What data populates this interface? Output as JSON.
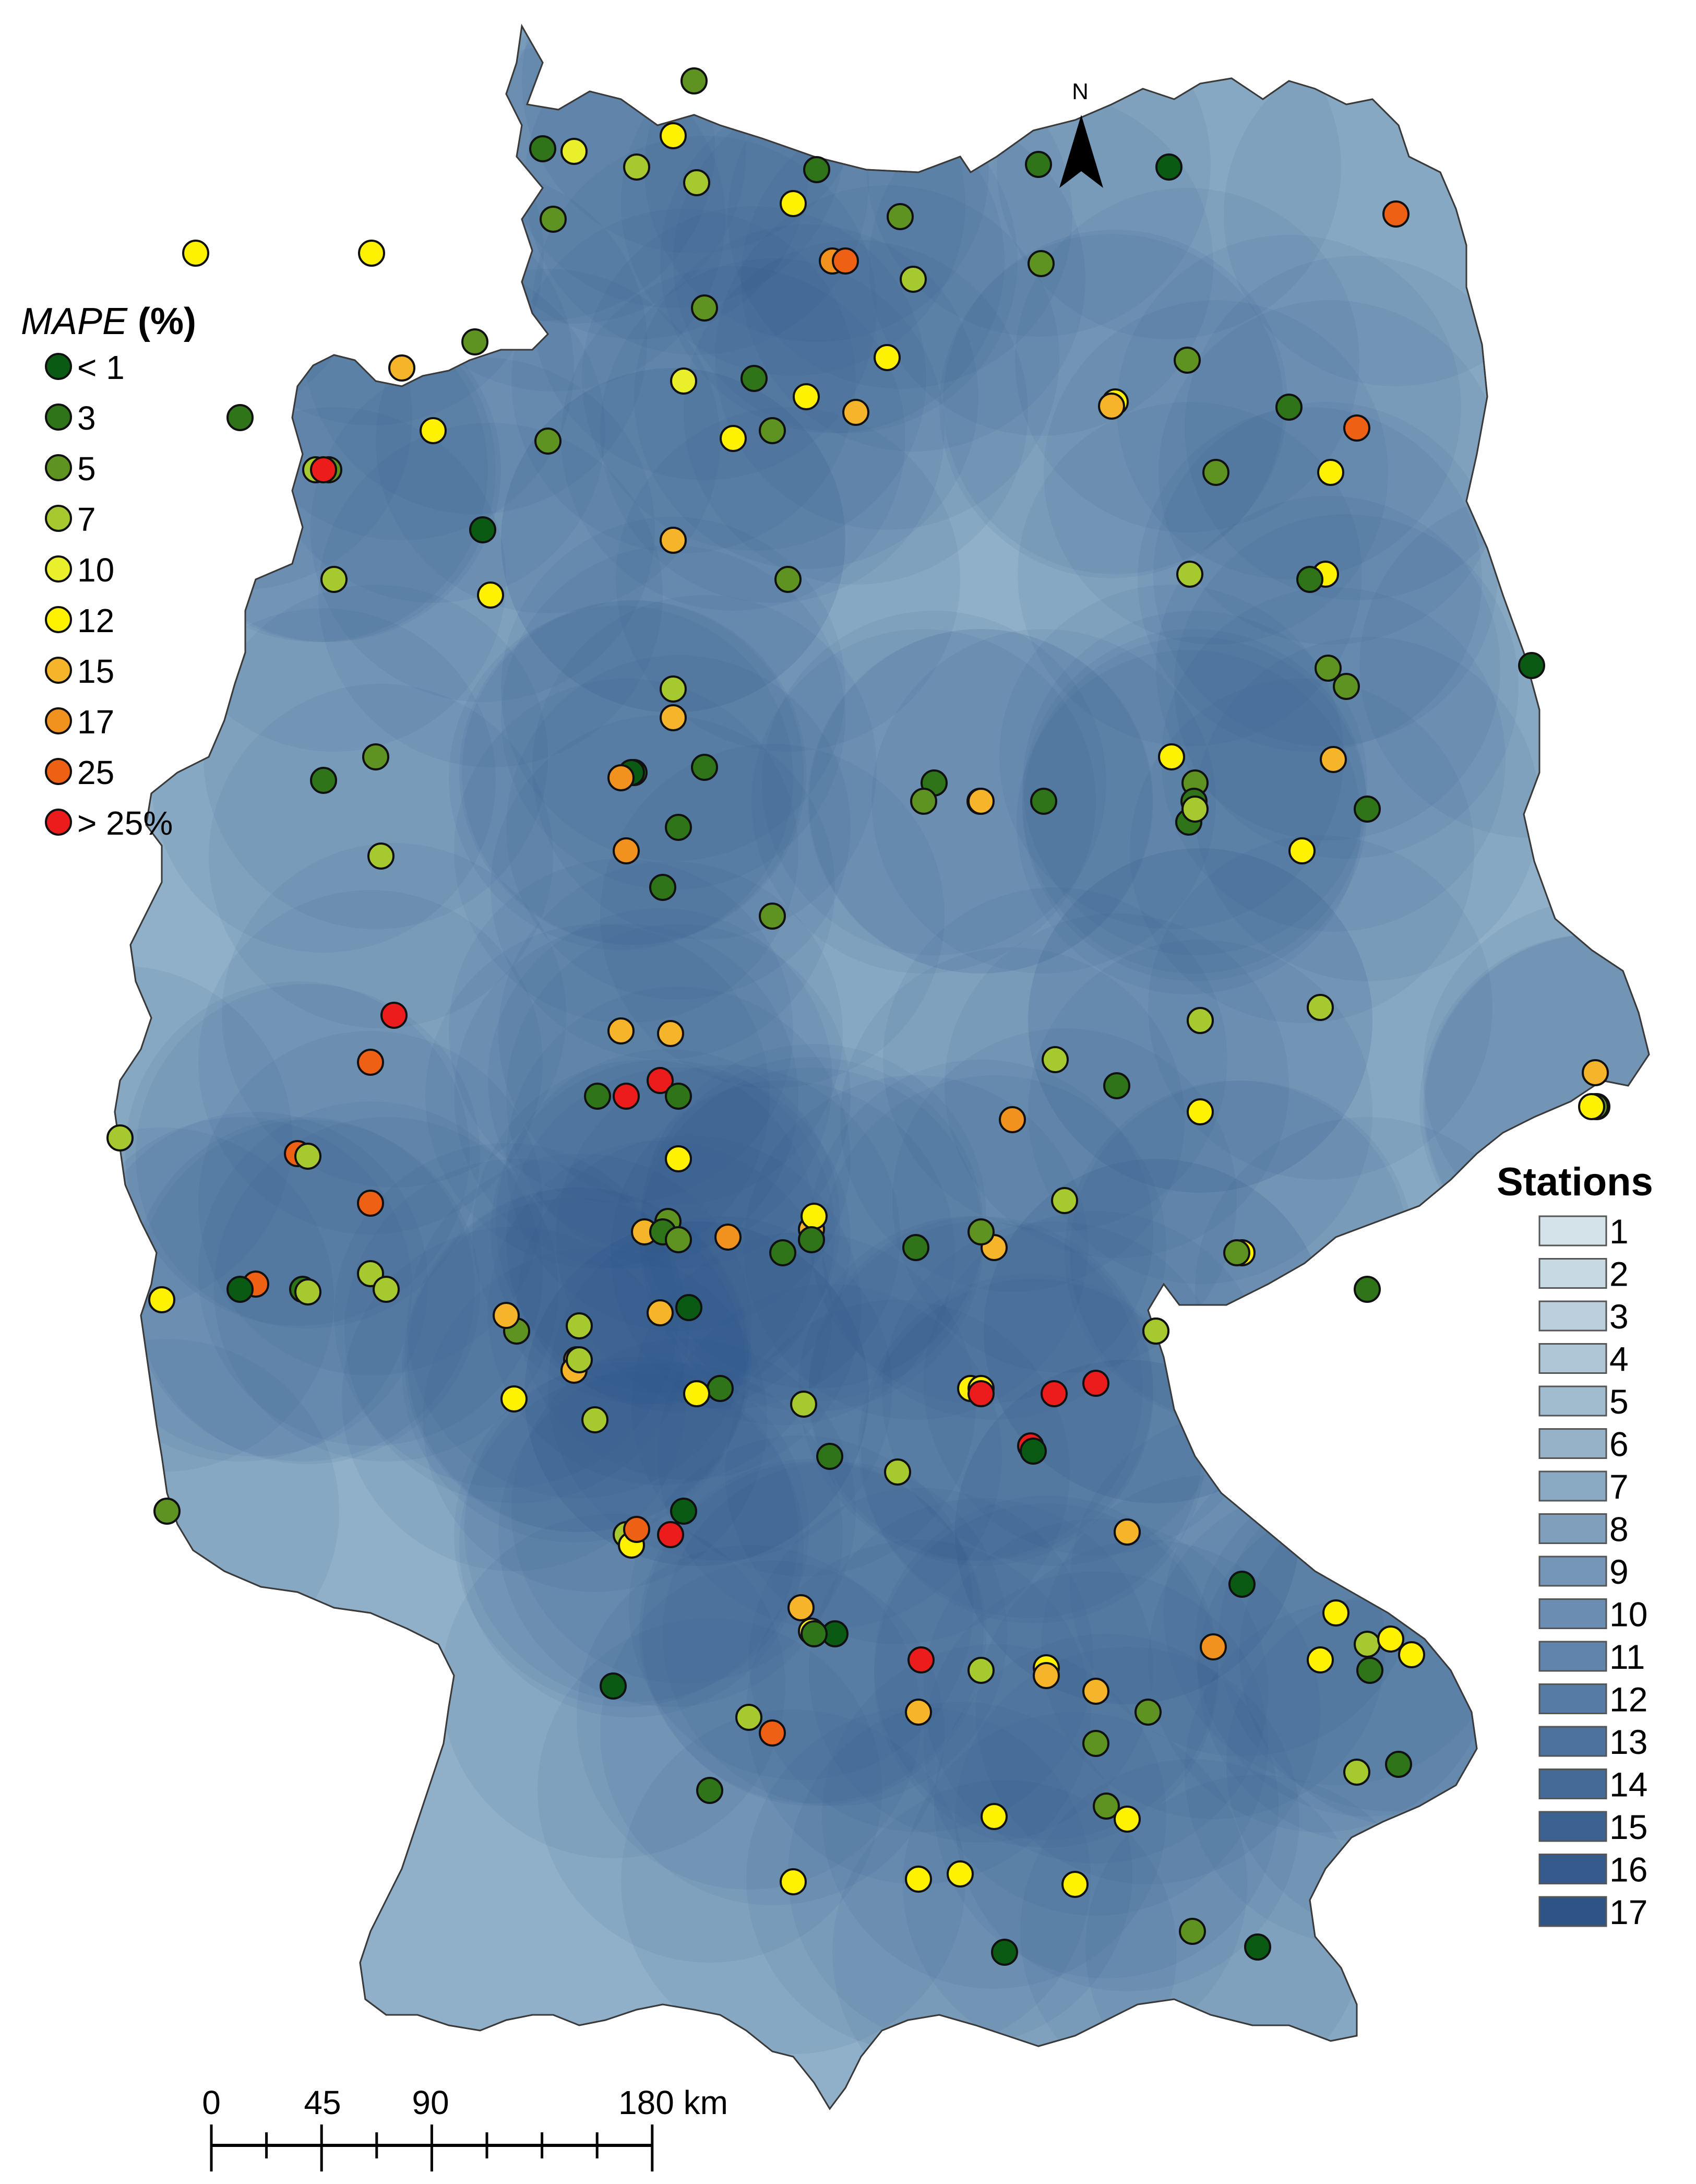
{
  "mape_legend": {
    "title_italic": "MAPE",
    "title_suffix": " (%)",
    "items": [
      {
        "label": "< 1",
        "color": "#0b5a14"
      },
      {
        "label": "3",
        "color": "#2f7419"
      },
      {
        "label": "5",
        "color": "#5e9221"
      },
      {
        "label": "7",
        "color": "#a6c930"
      },
      {
        "label": "10",
        "color": "#e9ef2b"
      },
      {
        "label": "12",
        "color": "#fff200"
      },
      {
        "label": "15",
        "color": "#f5b42a"
      },
      {
        "label": "17",
        "color": "#f2921e"
      },
      {
        "label": "25",
        "color": "#ee6014"
      },
      {
        "label": "> 25%",
        "color": "#ec1c1c"
      }
    ]
  },
  "stations_legend": {
    "title": "Stations",
    "items": [
      {
        "label": "1",
        "color": "#d4e3ea"
      },
      {
        "label": "2",
        "color": "#c7d9e3"
      },
      {
        "label": "3",
        "color": "#bbd0dc"
      },
      {
        "label": "4",
        "color": "#aec6d6"
      },
      {
        "label": "5",
        "color": "#a2bccf"
      },
      {
        "label": "6",
        "color": "#96b2c9"
      },
      {
        "label": "7",
        "color": "#8aa9c3"
      },
      {
        "label": "8",
        "color": "#7f9fbd"
      },
      {
        "label": "9",
        "color": "#7596b7"
      },
      {
        "label": "10",
        "color": "#6a8db1"
      },
      {
        "label": "11",
        "color": "#6084ab"
      },
      {
        "label": "12",
        "color": "#567ba4"
      },
      {
        "label": "13",
        "color": "#4d729e"
      },
      {
        "label": "14",
        "color": "#446a98"
      },
      {
        "label": "15",
        "color": "#3c6292"
      },
      {
        "label": "16",
        "color": "#355b8c"
      },
      {
        "label": "17",
        "color": "#2e5486"
      }
    ]
  },
  "north_arrow": {
    "label": "N"
  },
  "scale_bar": {
    "labels": [
      "0",
      "45",
      "90",
      "180 km"
    ]
  },
  "stations": [
    {
      "mape": 5
    },
    {
      "mape": 10
    },
    {
      "mape": 7
    },
    {
      "mape": 3
    },
    {
      "mape": 12
    },
    {
      "mape": 7
    },
    {
      "mape": 3
    },
    {
      "mape": 5
    },
    {
      "mape": 12
    },
    {
      "mape": 17
    },
    {
      "mape": 25
    },
    {
      "mape": 5
    },
    {
      "mape": 5
    },
    {
      "mape": 7
    },
    {
      "mape": 5
    },
    {
      "mape": 3
    },
    {
      "mape": 10
    },
    {
      "mape": 12
    },
    {
      "mape": 5
    },
    {
      "mape": 15
    },
    {
      "mape": 3
    },
    {
      "mape": 12
    },
    {
      "mape": 12
    },
    {
      "mape": 5
    },
    {
      "mape": 12
    },
    {
      "mape": 12
    },
    {
      "mape": 12
    },
    {
      "mape": 15
    },
    {
      "mape": 5
    },
    {
      "mape": 7
    },
    {
      "mape": 1
    },
    {
      "mape": 25
    },
    {
      "mape": 5
    },
    {
      "mape": 12
    },
    {
      "mape": 5
    },
    {
      "mape": 3
    },
    {
      "mape": 50
    },
    {
      "mape": 12
    },
    {
      "mape": 3
    },
    {
      "mape": 15
    },
    {
      "mape": 5
    },
    {
      "mape": 7
    },
    {
      "mape": 7
    },
    {
      "mape": 25
    },
    {
      "mape": 7
    },
    {
      "mape": 1
    },
    {
      "mape": 3
    },
    {
      "mape": 12
    },
    {
      "mape": 5
    },
    {
      "mape": 12
    },
    {
      "mape": 5
    },
    {
      "mape": 1
    },
    {
      "mape": 3
    },
    {
      "mape": 5
    },
    {
      "mape": 7
    },
    {
      "mape": 15
    },
    {
      "mape": 5
    },
    {
      "mape": 3
    },
    {
      "mape": 3
    },
    {
      "mape": 12
    },
    {
      "mape": 3
    },
    {
      "mape": 5
    },
    {
      "mape": 3
    },
    {
      "mape": 7
    },
    {
      "mape": 3
    },
    {
      "mape": 17
    },
    {
      "mape": 3
    },
    {
      "mape": 12
    },
    {
      "mape": 3
    },
    {
      "mape": 15
    },
    {
      "mape": 5
    },
    {
      "mape": 17
    },
    {
      "mape": 3
    },
    {
      "mape": 1
    },
    {
      "mape": 50
    },
    {
      "mape": 15
    },
    {
      "mape": 17
    },
    {
      "mape": 3
    },
    {
      "mape": 12
    },
    {
      "mape": 50
    },
    {
      "mape": 3
    },
    {
      "mape": 17
    },
    {
      "mape": 5
    },
    {
      "mape": 15
    },
    {
      "mape": 15
    },
    {
      "mape": 3
    },
    {
      "mape": 7
    },
    {
      "mape": 15
    },
    {
      "mape": 12
    },
    {
      "mape": 3
    },
    {
      "mape": 5
    },
    {
      "mape": 15
    },
    {
      "mape": 25
    },
    {
      "mape": 12
    },
    {
      "mape": 12
    },
    {
      "mape": 7
    },
    {
      "mape": 50
    },
    {
      "mape": 3
    },
    {
      "mape": 1
    },
    {
      "mape": 5
    },
    {
      "mape": 50
    },
    {
      "mape": 15
    },
    {
      "mape": 15
    },
    {
      "mape": 5
    },
    {
      "mape": 7
    },
    {
      "mape": 15
    },
    {
      "mape": 15
    },
    {
      "mape": 3
    },
    {
      "mape": 17
    },
    {
      "mape": 12
    },
    {
      "mape": 50
    },
    {
      "mape": 12
    },
    {
      "mape": 25
    },
    {
      "mape": 1
    },
    {
      "mape": 7
    },
    {
      "mape": 3
    },
    {
      "mape": 3
    },
    {
      "mape": 15
    },
    {
      "mape": 50
    },
    {
      "mape": 7
    },
    {
      "mape": 3
    },
    {
      "mape": 3
    },
    {
      "mape": 50
    },
    {
      "mape": 12
    },
    {
      "mape": 5
    },
    {
      "mape": 12
    },
    {
      "mape": 5
    },
    {
      "mape": 25
    },
    {
      "mape": 7
    },
    {
      "mape": 12
    },
    {
      "mape": 7
    },
    {
      "mape": 25
    },
    {
      "mape": 7
    },
    {
      "mape": 5
    },
    {
      "mape": 3
    },
    {
      "mape": 7
    },
    {
      "mape": 15
    },
    {
      "mape": 15
    },
    {
      "mape": 12
    },
    {
      "mape": 7
    },
    {
      "mape": 7
    },
    {
      "mape": 25
    },
    {
      "mape": 12
    },
    {
      "mape": 1
    },
    {
      "mape": 3
    },
    {
      "mape": 50
    },
    {
      "mape": 7
    },
    {
      "mape": 5
    },
    {
      "mape": 5
    },
    {
      "mape": 1
    },
    {
      "mape": 12
    },
    {
      "mape": 12
    },
    {
      "mape": 1
    },
    {
      "mape": 15
    },
    {
      "mape": 7
    },
    {
      "mape": 1
    },
    {
      "mape": 12
    },
    {
      "mape": 1
    },
    {
      "mape": 15
    },
    {
      "mape": 15
    },
    {
      "mape": 7
    },
    {
      "mape": 12
    },
    {
      "mape": 5
    },
    {
      "mape": 7
    },
    {
      "mape": 12
    },
    {
      "mape": 12
    },
    {
      "mape": 3
    },
    {
      "mape": 12
    },
    {
      "mape": 7
    },
    {
      "mape": 12
    },
    {
      "mape": 15
    },
    {
      "mape": 1
    },
    {
      "mape": 3
    },
    {
      "mape": 50
    },
    {
      "mape": 3
    },
    {
      "mape": 15
    },
    {
      "mape": 25
    },
    {
      "mape": 50
    },
    {
      "mape": 15
    },
    {
      "mape": 7
    },
    {
      "mape": 7
    },
    {
      "mape": 3
    },
    {
      "mape": 7
    },
    {
      "mape": 5
    },
    {
      "mape": 12
    },
    {
      "mape": 7
    },
    {
      "mape": 17
    },
    {
      "mape": 12
    },
    {
      "mape": 12
    },
    {
      "mape": 5
    },
    {
      "mape": 12
    },
    {
      "mape": 12
    },
    {
      "mape": 5
    },
    {
      "mape": 12
    },
    {
      "mape": 1
    },
    {
      "mape": 1
    },
    {
      "mape": 12
    },
    {
      "mape": 12
    },
    {
      "mape": 12
    },
    {
      "mape": 15
    },
    {
      "mape": 1
    },
    {
      "mape": 17
    },
    {
      "mape": 15
    },
    {
      "mape": 3
    },
    {
      "mape": 7
    },
    {
      "mape": 5
    },
    {
      "mape": 15
    },
    {
      "mape": 12
    }
  ]
}
